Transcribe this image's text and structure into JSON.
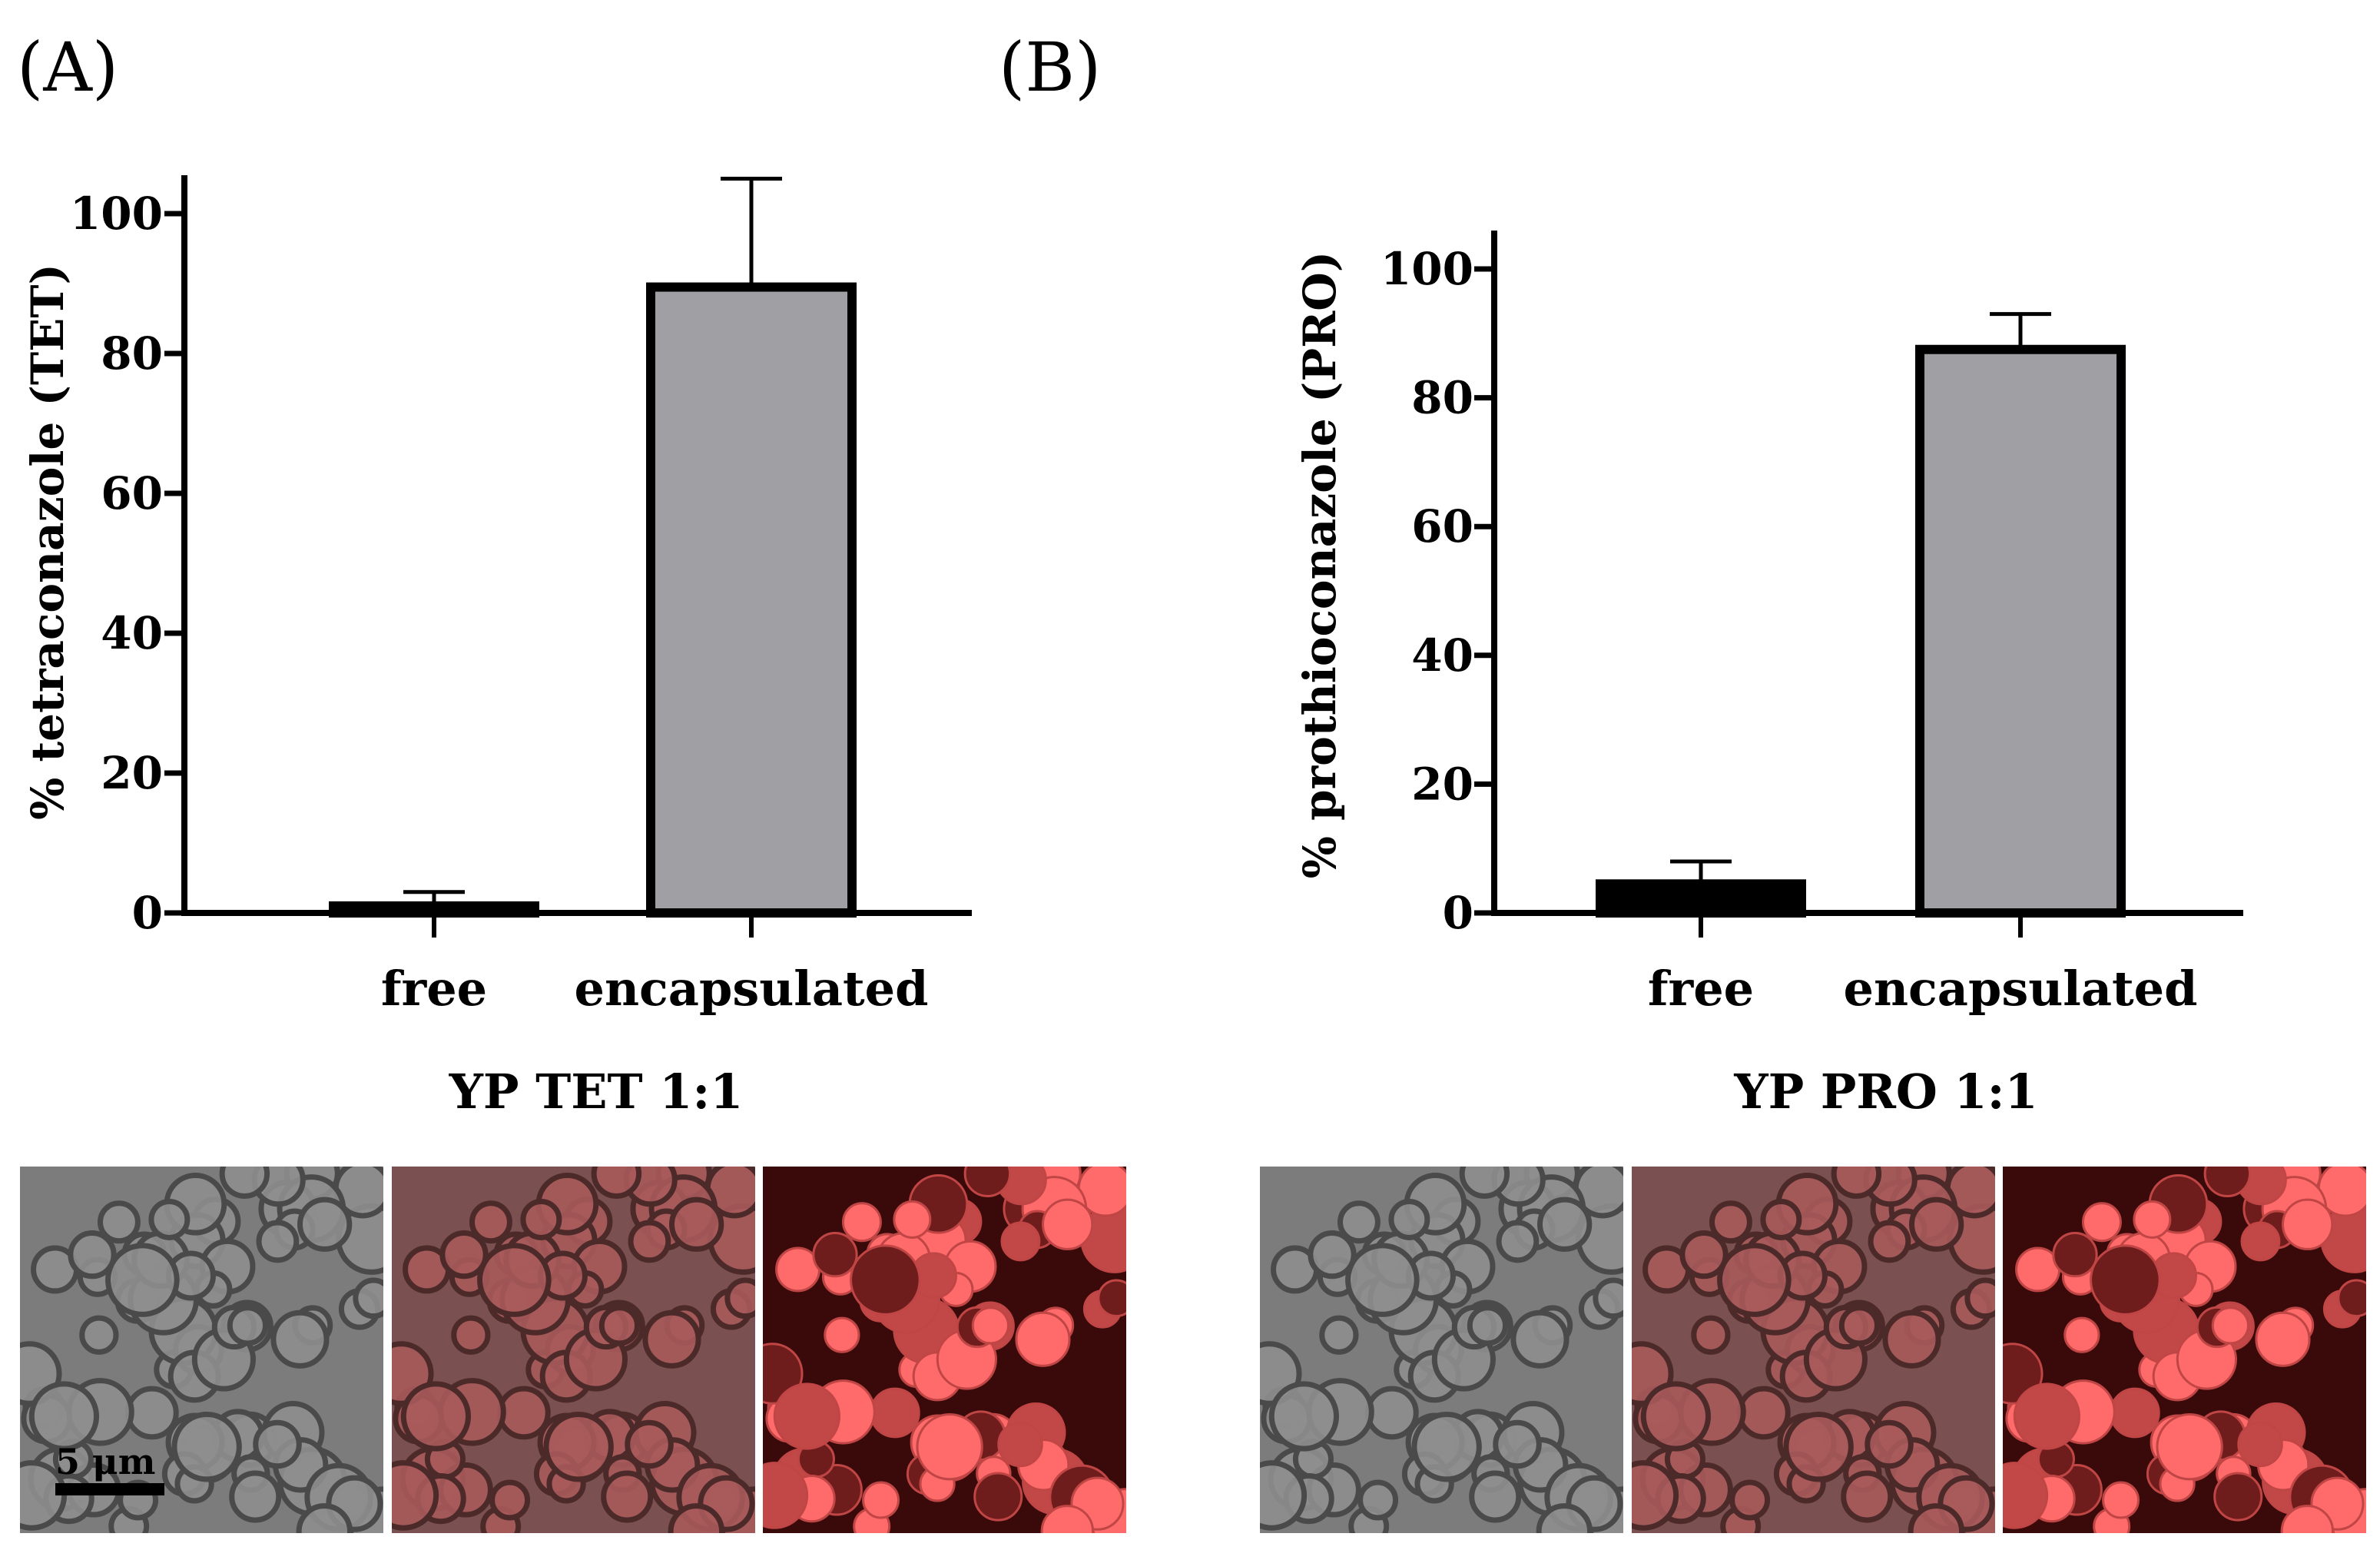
{
  "panels": [
    {
      "letter": "(A)",
      "sample_label": "YP TET 1:1",
      "scale_bar_label": "5 μm",
      "micrograph_views": [
        "brightfield",
        "merged",
        "fluorescence"
      ]
    },
    {
      "letter": "(B)",
      "sample_label": "YP PRO 1:1",
      "scale_bar_label": "",
      "micrograph_views": [
        "brightfield",
        "merged",
        "fluorescence"
      ]
    }
  ],
  "colors": {
    "free_bar": "#000000",
    "encapsulated_bar": "#a0a0a4",
    "brightfield_bg": "#7b7b7b",
    "fluor_bg": "#3a0a0a",
    "fluor_bright": "#ff6a6a"
  },
  "chart_data": [
    {
      "type": "bar",
      "title": "",
      "ylabel": "% tetraconazole (TET)",
      "xlabel": "",
      "categories": [
        "free",
        "encapsulated"
      ],
      "values": [
        1,
        89.5
      ],
      "error_upper": [
        2,
        15.5
      ],
      "ylim": [
        0,
        105
      ],
      "yticks": [
        0,
        20,
        40,
        60,
        80,
        100
      ],
      "grid": false
    },
    {
      "type": "bar",
      "title": "",
      "ylabel": "% prothioconazole (PRO)",
      "xlabel": "",
      "categories": [
        "free",
        "encapsulated"
      ],
      "values": [
        4.5,
        87.5
      ],
      "error_upper": [
        3.5,
        5.5
      ],
      "ylim": [
        0,
        105
      ],
      "yticks": [
        0,
        20,
        40,
        60,
        80,
        100
      ],
      "grid": false
    }
  ]
}
